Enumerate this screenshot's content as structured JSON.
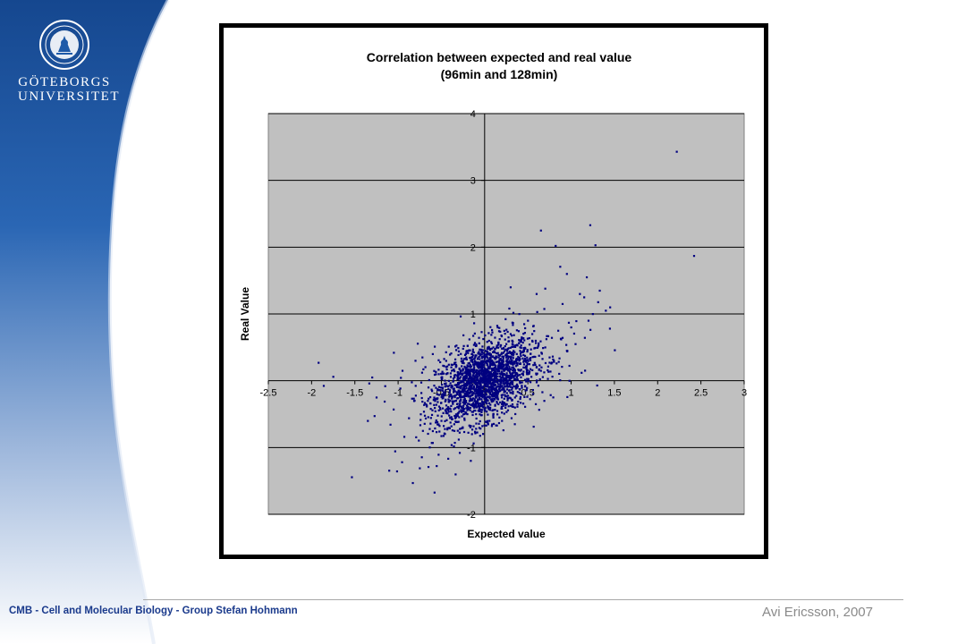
{
  "logo": {
    "line1": "GÖTEBORGS",
    "line2": "UNIVERSITET",
    "emblem": "university-seal-icon"
  },
  "footer": {
    "left_text": "CMB - Cell and Molecular Biology - Group  Stefan Hohmann",
    "right_text": "Avi Ericsson, 2007"
  },
  "colors": {
    "brand_blue": "#1e5aa8",
    "plot_background": "#c0c0c0",
    "marker": "#000080"
  },
  "chart_data": {
    "type": "scatter",
    "title": "Correlation between expected and real value",
    "subtitle": "(96min and 128min)",
    "xlabel": "Expected value",
    "ylabel": "Real Value",
    "xlim": [
      -2.5,
      3
    ],
    "ylim": [
      -2,
      4
    ],
    "xticks": [
      "-2.5",
      "-2",
      "-1.5",
      "-1",
      "-0.5",
      "0",
      "0.5",
      "1",
      "1.5",
      "2",
      "2.5",
      "3"
    ],
    "yticks": [
      "-2",
      "-1",
      "0",
      "1",
      "2",
      "3",
      "4"
    ],
    "grid": "horizontal",
    "legend": "none",
    "notes": "Dense cluster of several thousand points centered near (0, 0) with spread roughly ±0.6; representative points listed below.",
    "points": [
      [
        2.22,
        3.43
      ],
      [
        2.42,
        1.87
      ],
      [
        1.22,
        2.33
      ],
      [
        1.28,
        2.03
      ],
      [
        0.82,
        2.02
      ],
      [
        0.65,
        2.25
      ],
      [
        1.18,
        1.55
      ],
      [
        0.95,
        1.6
      ],
      [
        1.33,
        1.35
      ],
      [
        1.45,
        1.1
      ],
      [
        1.4,
        1.05
      ],
      [
        1.1,
        1.3
      ],
      [
        1.15,
        1.25
      ],
      [
        0.7,
        1.38
      ],
      [
        0.6,
        1.3
      ],
      [
        0.3,
        1.4
      ],
      [
        0.9,
        1.15
      ],
      [
        1.2,
        0.9
      ],
      [
        1.25,
        1.0
      ],
      [
        1.0,
        0.8
      ],
      [
        0.85,
        0.75
      ],
      [
        1.05,
        0.55
      ],
      [
        0.95,
        0.45
      ],
      [
        1.12,
        0.12
      ],
      [
        1.3,
        -0.07
      ],
      [
        0.98,
        0.0
      ],
      [
        0.75,
        0.35
      ],
      [
        0.5,
        0.9
      ],
      [
        0.4,
        1.0
      ],
      [
        0.55,
        0.6
      ],
      [
        -1.92,
        0.27
      ],
      [
        -1.75,
        0.06
      ],
      [
        -1.05,
        0.42
      ],
      [
        -1.15,
        -0.08
      ],
      [
        -1.3,
        0.05
      ],
      [
        -1.25,
        -0.25
      ],
      [
        -0.95,
        0.15
      ],
      [
        -0.8,
        0.3
      ],
      [
        -0.72,
        0.35
      ],
      [
        -0.65,
        -0.1
      ],
      [
        -0.75,
        -1.31
      ],
      [
        -0.65,
        -1.29
      ],
      [
        -0.6,
        -0.93
      ],
      [
        -0.3,
        -0.88
      ],
      [
        -0.5,
        -0.6
      ],
      [
        -0.35,
        -0.75
      ],
      [
        0.1,
        -0.55
      ],
      [
        0.35,
        -0.4
      ],
      [
        -0.2,
        -0.5
      ],
      [
        0.2,
        -0.6
      ],
      [
        0.0,
        0.0
      ],
      [
        0.05,
        0.1
      ],
      [
        -0.1,
        0.05
      ],
      [
        0.1,
        -0.1
      ],
      [
        -0.05,
        -0.15
      ],
      [
        0.2,
        0.2
      ],
      [
        -0.2,
        0.15
      ],
      [
        0.15,
        -0.2
      ],
      [
        0.3,
        0.1
      ],
      [
        -0.3,
        -0.1
      ],
      [
        0.25,
        0.35
      ],
      [
        -0.25,
        0.3
      ],
      [
        0.4,
        0.3
      ],
      [
        -0.4,
        -0.3
      ],
      [
        0.35,
        -0.25
      ],
      [
        -0.35,
        0.25
      ],
      [
        0.5,
        0.1
      ],
      [
        -0.5,
        0.05
      ],
      [
        0.45,
        0.45
      ],
      [
        -0.45,
        -0.45
      ],
      [
        0.6,
        0.2
      ],
      [
        -0.55,
        -0.2
      ],
      [
        0.1,
        0.5
      ],
      [
        -0.1,
        -0.5
      ],
      [
        0.05,
        0.6
      ],
      [
        0.0,
        -0.45
      ],
      [
        0.7,
        0.5
      ],
      [
        0.65,
        0.15
      ],
      [
        -0.6,
        0.4
      ],
      [
        0.3,
        0.7
      ],
      [
        0.15,
        0.8
      ],
      [
        0.25,
        0.55
      ],
      [
        0.55,
        0.7
      ],
      [
        0.8,
        0.3
      ],
      [
        -0.15,
        0.4
      ],
      [
        0.2,
        -0.35
      ],
      [
        -0.05,
        0.25
      ],
      [
        0.12,
        0.03
      ],
      [
        -0.18,
        -0.05
      ],
      [
        0.08,
        -0.3
      ],
      [
        -0.28,
        -0.3
      ],
      [
        0.38,
        0.02
      ]
    ]
  }
}
